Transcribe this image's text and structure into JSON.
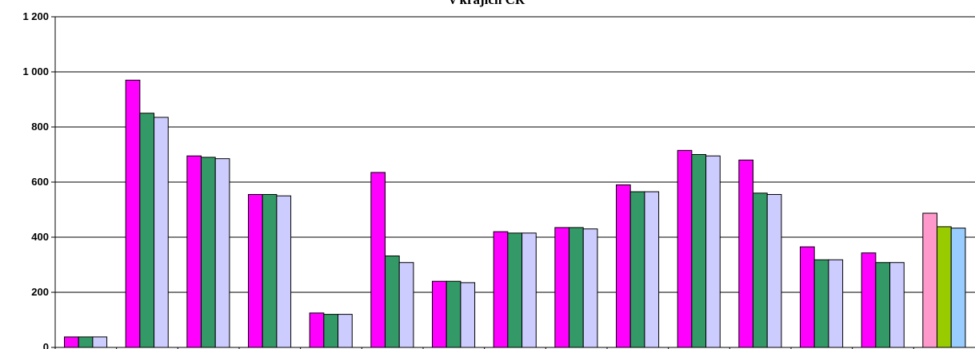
{
  "chart_data": {
    "type": "bar",
    "title": "v krajích ČR",
    "xlabel": "",
    "ylabel": "",
    "ylim": [
      0,
      1200
    ],
    "yticks": [
      0,
      200,
      400,
      600,
      800,
      1000,
      1200
    ],
    "ytick_labels": [
      "0",
      "200",
      "400",
      "600",
      "800",
      "1 000",
      "1 200"
    ],
    "grid": true,
    "legend": "none",
    "categories": [
      "",
      "",
      "",
      "",
      "",
      "",
      "",
      "",
      "",
      "",
      "",
      "",
      "",
      "",
      ""
    ],
    "series": [
      {
        "values": [
          38,
          970,
          695,
          555,
          125,
          635,
          240,
          420,
          435,
          590,
          715,
          680,
          365,
          343,
          487
        ]
      },
      {
        "values": [
          38,
          850,
          690,
          555,
          120,
          332,
          240,
          415,
          435,
          565,
          700,
          560,
          318,
          308,
          438
        ]
      },
      {
        "values": [
          38,
          835,
          685,
          550,
          120,
          308,
          235,
          415,
          430,
          565,
          695,
          555,
          318,
          308,
          433
        ]
      }
    ],
    "colors": [
      "#FF00FF",
      "#339966",
      "#CCCCFF"
    ],
    "last_group_colors": [
      "#FF99CC",
      "#99CC00",
      "#99CCFF"
    ]
  }
}
